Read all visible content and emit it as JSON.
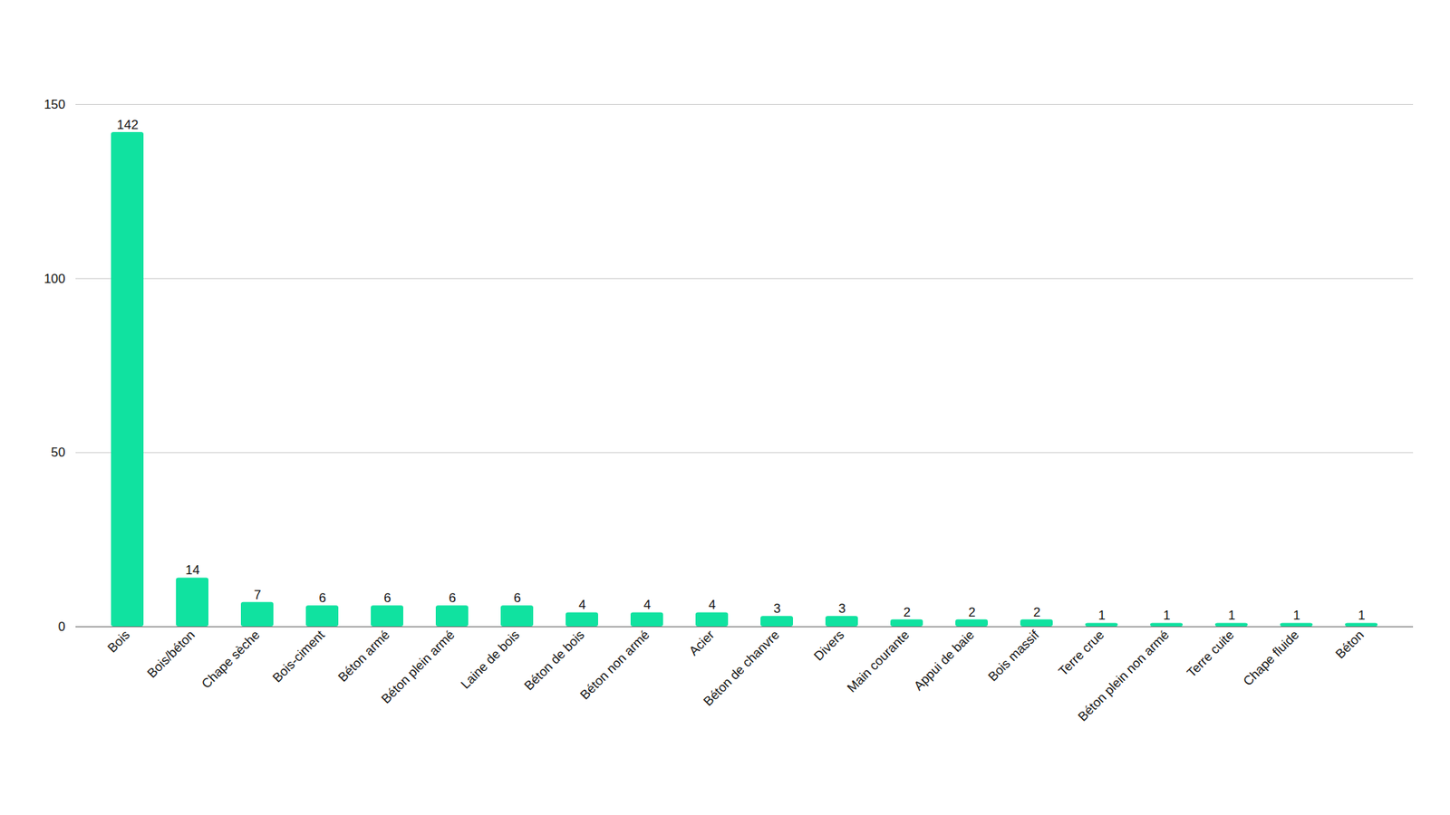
{
  "chart_data": {
    "type": "bar",
    "categories": [
      "Bois",
      "Bois/béton",
      "Chape sèche",
      "Bois-ciment",
      "Béton armé",
      "Béton plein armé",
      "Laine de bois",
      "Béton de bois",
      "Béton non armé",
      "Acier",
      "Béton de chanvre",
      "Divers",
      "Main courante",
      "Appui de baie",
      "Bois massif",
      "Terre crue",
      "Béton plein non armé",
      "Terre cuite",
      "Chape fluide",
      "Béton"
    ],
    "values": [
      142,
      14,
      7,
      6,
      6,
      6,
      6,
      4,
      4,
      4,
      3,
      3,
      2,
      2,
      2,
      1,
      1,
      1,
      1,
      1
    ],
    "color": "#10e2a0",
    "ylim": [
      0,
      150
    ],
    "yticks": [
      0,
      50,
      100,
      150
    ],
    "grid": true,
    "data_labels": true
  }
}
